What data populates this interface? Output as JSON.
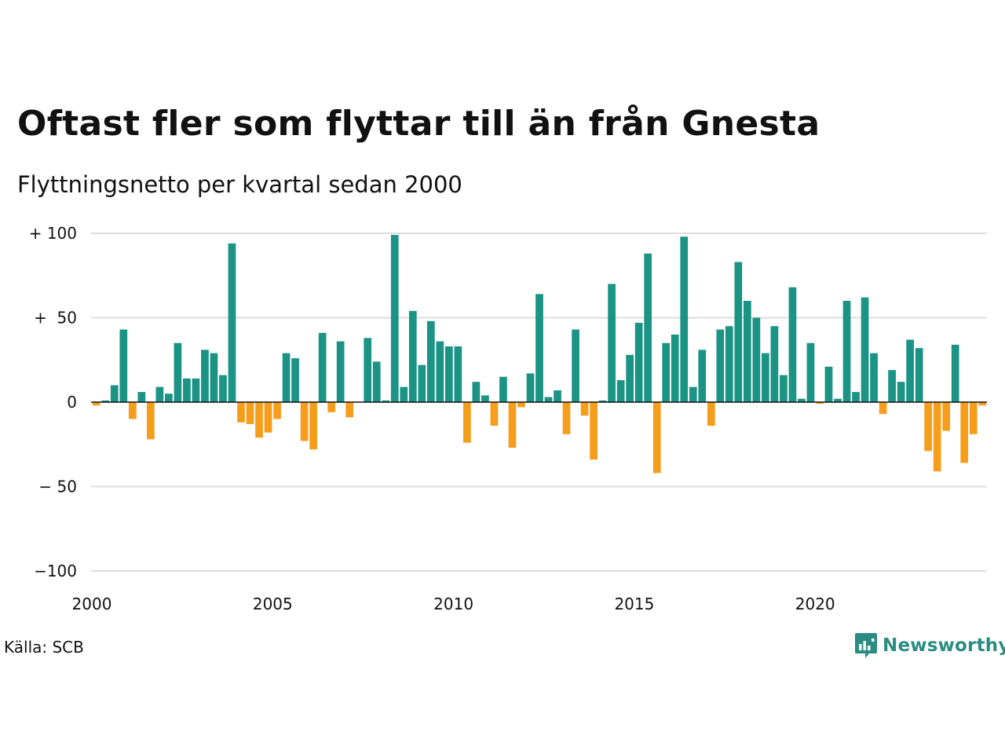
{
  "title": "Oftast fler som flyttar till än från Gnesta",
  "subtitle": "Flyttningsnetto per kvartal sedan 2000",
  "source": "Källa: SCB",
  "brand": {
    "name": "Newsworthy",
    "logo_icon": "newsworthy-logo-icon",
    "color": "#2a8c82"
  },
  "colors": {
    "positive": "#1b9385",
    "negative": "#f59e1c",
    "grid": "#dddddd",
    "zero_line": "#111111"
  },
  "chart_data": {
    "type": "bar",
    "title": "Oftast fler som flyttar till än från Gnesta",
    "subtitle": "Flyttningsnetto per kvartal sedan 2000",
    "xlabel": "",
    "ylabel": "",
    "ylim": [
      -100,
      100
    ],
    "yticks": [
      {
        "value": 100,
        "label": "+ 100"
      },
      {
        "value": 50,
        "label": "+  50"
      },
      {
        "value": 0,
        "label": "0"
      },
      {
        "value": -50,
        "label": "− 50"
      },
      {
        "value": -100,
        "label": "−100"
      }
    ],
    "xticks": [
      "2000",
      "2005",
      "2010",
      "2015",
      "2020"
    ],
    "grid": true,
    "x_start": {
      "year": 2000,
      "quarter": 1
    },
    "values": [
      -2,
      1,
      10,
      43,
      -10,
      6,
      -22,
      9,
      5,
      35,
      14,
      14,
      31,
      29,
      16,
      94,
      -12,
      -13,
      -21,
      -18,
      -10,
      29,
      26,
      -23,
      -28,
      41,
      -6,
      36,
      -9,
      0,
      38,
      24,
      1,
      99,
      9,
      54,
      22,
      48,
      36,
      33,
      33,
      -24,
      12,
      4,
      -14,
      15,
      -27,
      -3,
      17,
      64,
      3,
      7,
      -19,
      43,
      -8,
      -34,
      1,
      70,
      13,
      28,
      47,
      88,
      -42,
      35,
      40,
      98,
      9,
      31,
      -14,
      43,
      45,
      83,
      60,
      50,
      29,
      45,
      16,
      68,
      2,
      35,
      -1,
      21,
      2,
      60,
      6,
      62,
      29,
      -7,
      19,
      12,
      37,
      32,
      -29,
      -41,
      -17,
      34,
      -36,
      -19,
      -2
    ]
  }
}
